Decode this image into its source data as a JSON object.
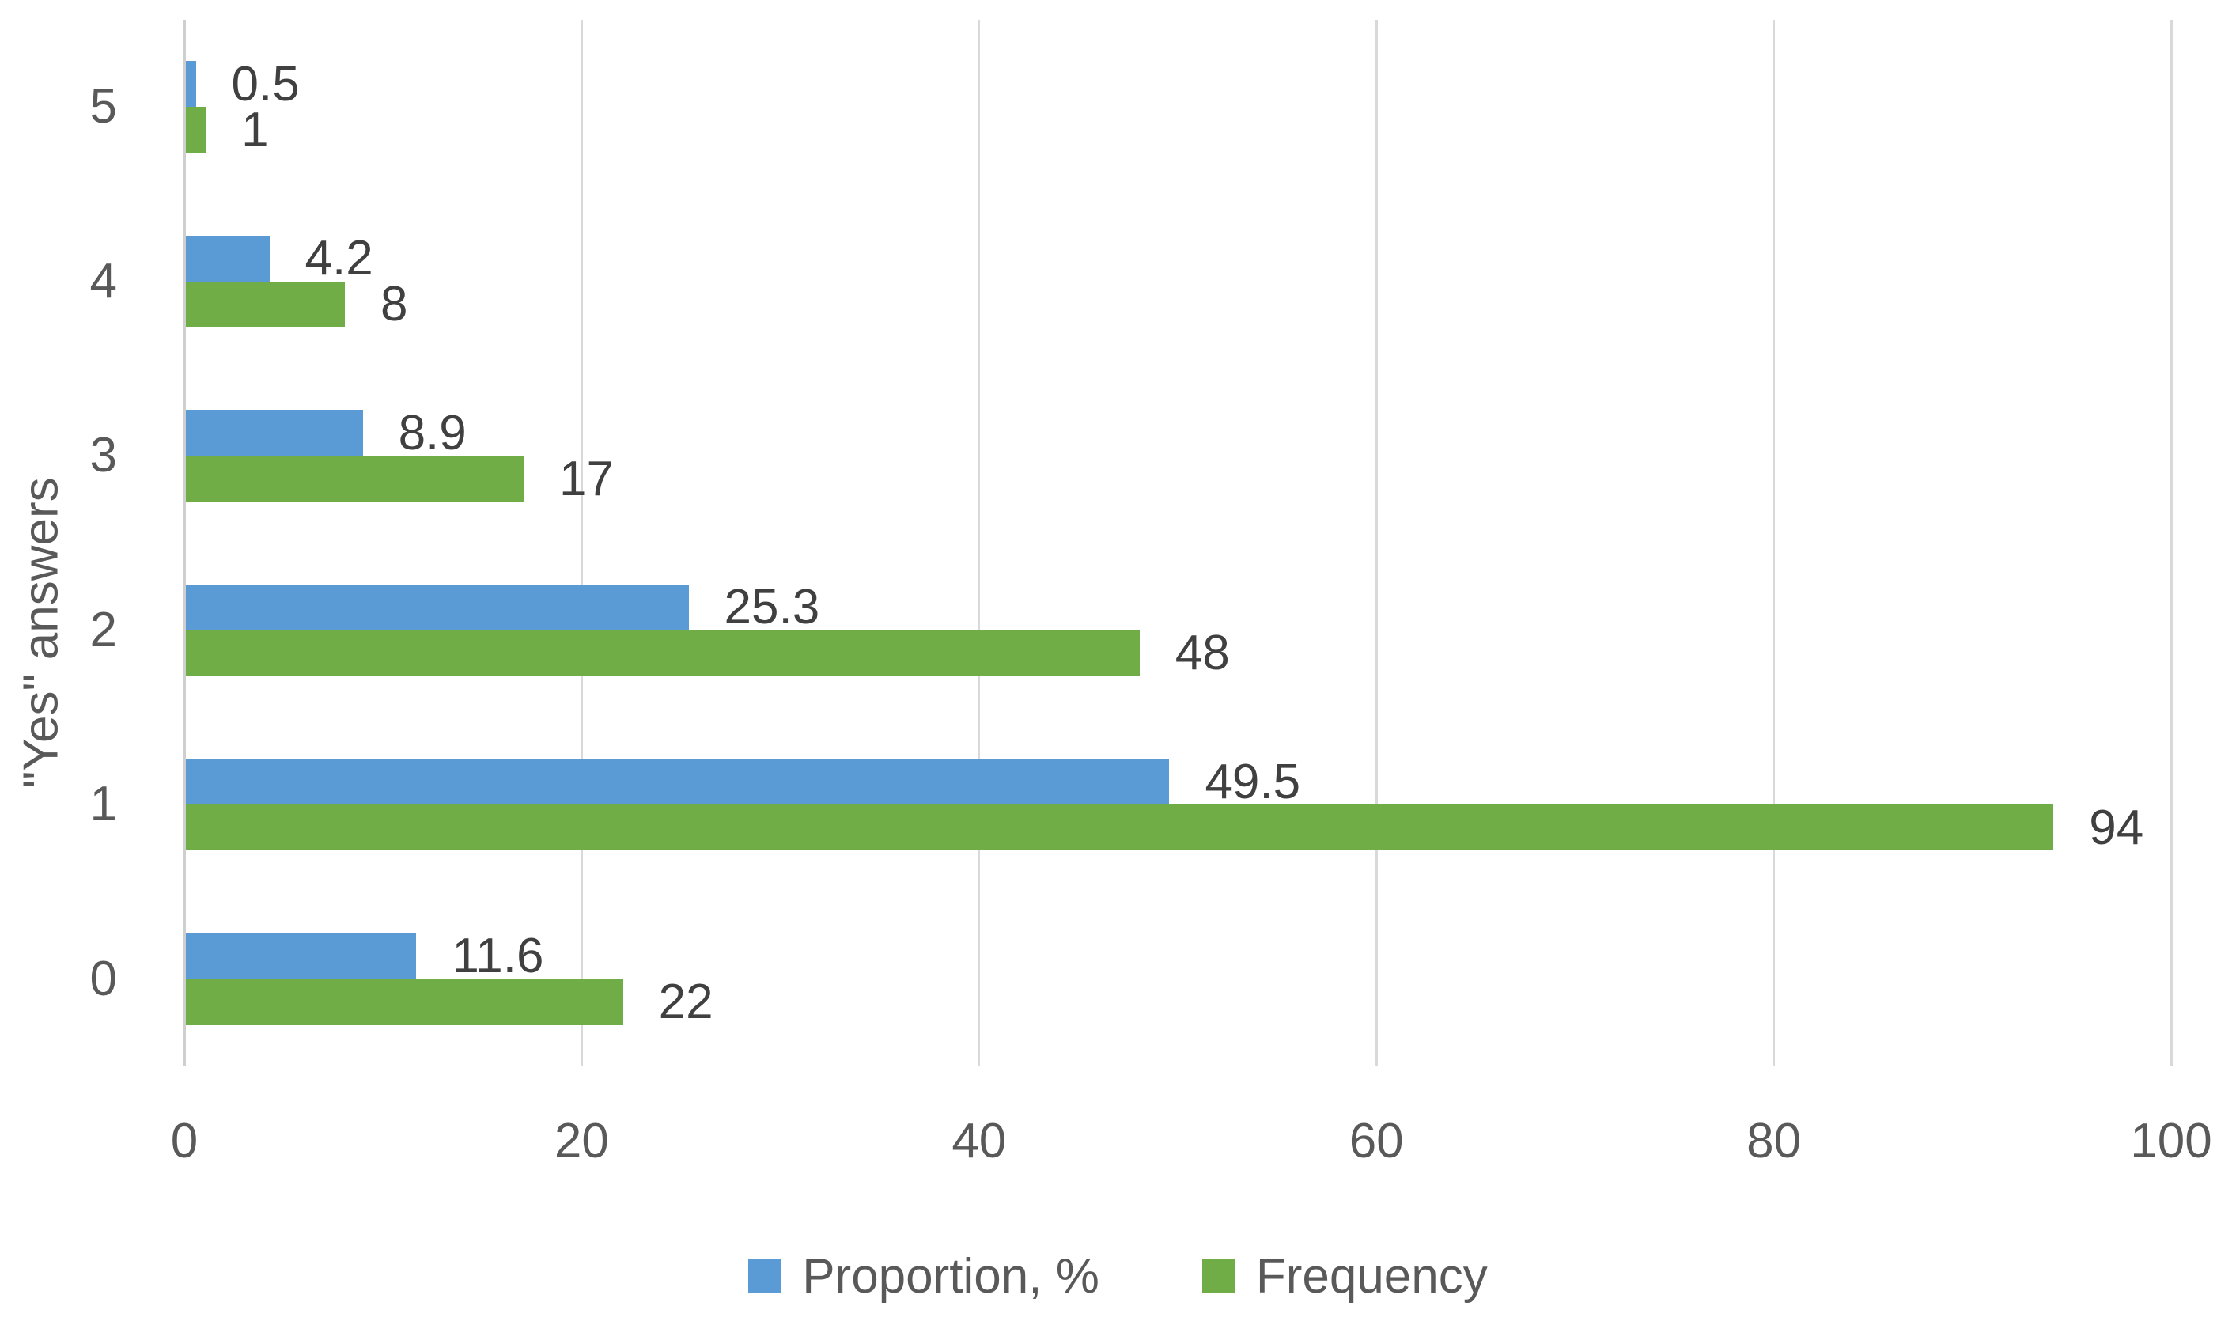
{
  "chart_data": {
    "type": "bar",
    "orientation": "horizontal",
    "title": "",
    "xlabel": "",
    "ylabel": "\"Yes\" answers",
    "categories": [
      "5",
      "4",
      "3",
      "2",
      "1",
      "0"
    ],
    "series": [
      {
        "name": "Proportion, %",
        "color": "#5B9BD5",
        "values": [
          0.5,
          4.2,
          8.9,
          25.3,
          49.5,
          11.6
        ]
      },
      {
        "name": "Frequency",
        "color": "#70AD47",
        "values": [
          1,
          8,
          17,
          48,
          94,
          22
        ]
      }
    ],
    "data_labels": [
      {
        "series": "Proportion, %",
        "labels": [
          "0.5",
          "4.2",
          "8.9",
          "25.3",
          "49.5",
          "11.6"
        ]
      },
      {
        "series": "Frequency",
        "labels": [
          "1",
          "8",
          "17",
          "48",
          "94",
          "22"
        ]
      }
    ],
    "xlim": [
      0,
      100
    ],
    "xticks": [
      0,
      20,
      40,
      60,
      80,
      100
    ],
    "grid": "vertical",
    "legend_position": "bottom"
  },
  "colors": {
    "background": "#FFFFFF",
    "gridline": "#D9D9D9",
    "axis_line": "#CFCFCF",
    "tick_text": "#595959",
    "data_label_text": "#404040",
    "legend_text": "#595959"
  }
}
